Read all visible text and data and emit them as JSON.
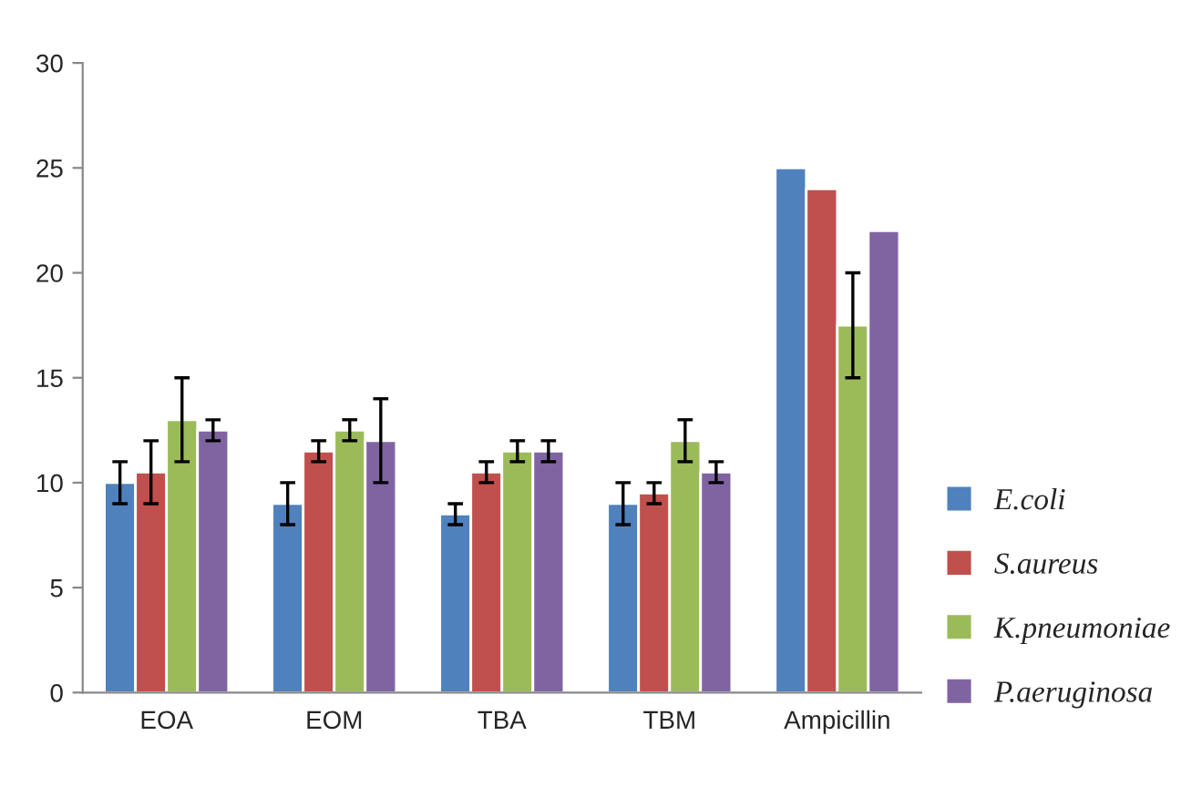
{
  "chart_data": {
    "type": "bar",
    "categories": [
      "EOA",
      "EOM",
      "TBA",
      "TBM",
      "Ampicillin"
    ],
    "series": [
      {
        "name": "E.coli",
        "color": "#4f81bd",
        "values": [
          10,
          9,
          8.5,
          9,
          25
        ],
        "errors": [
          1,
          1,
          0.5,
          1,
          null
        ]
      },
      {
        "name": "S.aureus",
        "color": "#c0504d",
        "values": [
          10.5,
          11.5,
          10.5,
          9.5,
          24
        ],
        "errors": [
          1.5,
          0.5,
          0.5,
          0.5,
          null
        ]
      },
      {
        "name": "K.pneumoniae",
        "color": "#9bbb59",
        "values": [
          13,
          12.5,
          11.5,
          12,
          17.5
        ],
        "errors": [
          2,
          0.5,
          0.5,
          1,
          2.5
        ]
      },
      {
        "name": "P.aeruginosa",
        "color": "#8064a2",
        "values": [
          12.5,
          12,
          11.5,
          10.5,
          22
        ],
        "errors": [
          0.5,
          2,
          0.5,
          0.5,
          null
        ]
      }
    ],
    "ylim": [
      0,
      30
    ],
    "yticks": [
      0,
      5,
      10,
      15,
      20,
      25,
      30
    ],
    "grid": false,
    "legend": "right"
  }
}
